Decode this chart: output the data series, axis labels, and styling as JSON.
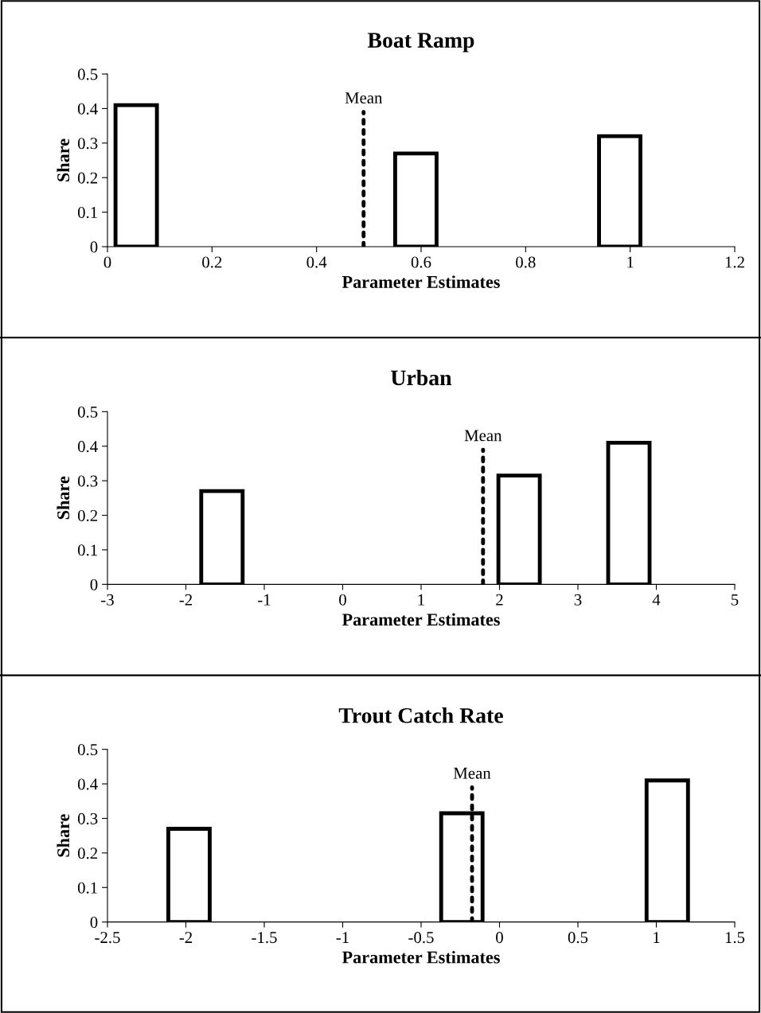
{
  "chart_data": [
    {
      "type": "bar",
      "title": "Boat Ramp",
      "xlabel": "Parameter Estimates",
      "ylabel": "Share",
      "x": [
        0.055,
        0.59,
        0.98
      ],
      "values": [
        0.41,
        0.27,
        0.32
      ],
      "color": "#000000",
      "xlim": [
        0,
        1.2
      ],
      "xticks": [
        0,
        0.2,
        0.4,
        0.6,
        0.8,
        1,
        1.2
      ],
      "ylim": [
        0,
        0.5
      ],
      "yticks": [
        0,
        0.1,
        0.2,
        0.3,
        0.4,
        0.5
      ],
      "ref_lines": [
        {
          "axis": "x",
          "value": 0.49,
          "label": "Mean",
          "line_style": "dotted",
          "color": "#000000"
        }
      ],
      "grid": false,
      "legend": false
    },
    {
      "type": "bar",
      "title": "Urban",
      "xlabel": "Parameter Estimates",
      "ylabel": "Share",
      "x": [
        -1.54,
        2.25,
        3.65
      ],
      "values": [
        0.27,
        0.315,
        0.41
      ],
      "color": "#000000",
      "xlim": [
        -3,
        5
      ],
      "xticks": [
        -3,
        -2,
        -1,
        0,
        1,
        2,
        3,
        4,
        5
      ],
      "ylim": [
        0,
        0.5
      ],
      "yticks": [
        0,
        0.1,
        0.2,
        0.3,
        0.4,
        0.5
      ],
      "ref_lines": [
        {
          "axis": "x",
          "value": 1.79,
          "label": "Mean",
          "line_style": "dotted",
          "color": "#000000"
        }
      ],
      "grid": false,
      "legend": false
    },
    {
      "type": "bar",
      "title": "Trout Catch Rate",
      "xlabel": "Parameter Estimates",
      "ylabel": "Share",
      "x": [
        -1.98,
        -0.24,
        1.07
      ],
      "values": [
        0.27,
        0.315,
        0.41
      ],
      "color": "#000000",
      "xlim": [
        -2.5,
        1.5
      ],
      "xticks": [
        -2.5,
        -2,
        -1.5,
        -1,
        -0.5,
        0,
        0.5,
        1,
        1.5
      ],
      "ylim": [
        0,
        0.5
      ],
      "yticks": [
        0,
        0.1,
        0.2,
        0.3,
        0.4,
        0.5
      ],
      "ref_lines": [
        {
          "axis": "x",
          "value": -0.175,
          "label": "Mean",
          "line_style": "dotted",
          "color": "#000000"
        }
      ],
      "grid": false,
      "legend": false
    }
  ]
}
